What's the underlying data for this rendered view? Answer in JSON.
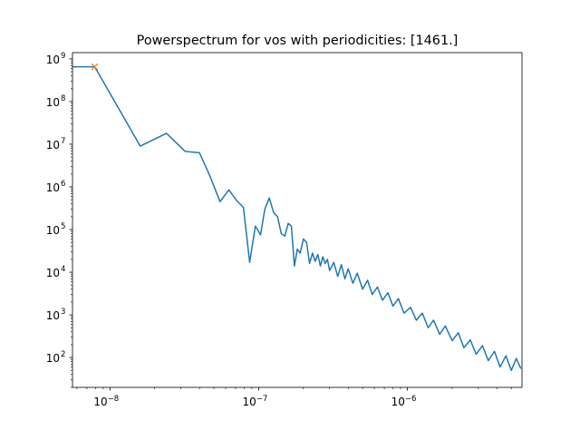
{
  "chart_data": {
    "type": "line",
    "title": "Powerspectrum for vos with periodicities: [1461.]",
    "xscale": "log",
    "yscale": "log",
    "xlim": [
      5.6e-09,
      5.9e-06
    ],
    "ylim": [
      20,
      1400000000.0
    ],
    "xticks": [
      {
        "value": 1e-08,
        "label": "10",
        "exp": "−8"
      },
      {
        "value": 1e-07,
        "label": "10",
        "exp": "−7"
      },
      {
        "value": 1e-06,
        "label": "10",
        "exp": "−6"
      }
    ],
    "yticks": [
      {
        "value": 100.0,
        "label": "10",
        "exp": "2"
      },
      {
        "value": 1000.0,
        "label": "10",
        "exp": "3"
      },
      {
        "value": 10000.0,
        "label": "10",
        "exp": "4"
      },
      {
        "value": 100000.0,
        "label": "10",
        "exp": "5"
      },
      {
        "value": 1000000.0,
        "label": "10",
        "exp": "6"
      },
      {
        "value": 10000000.0,
        "label": "10",
        "exp": "7"
      },
      {
        "value": 100000000.0,
        "label": "10",
        "exp": "8"
      },
      {
        "value": 1000000000.0,
        "label": "10",
        "exp": "9"
      }
    ],
    "grid": false,
    "series": [
      {
        "color": "#1f77b4",
        "points": [
          [
            5.6e-09,
            650000000.0
          ],
          [
            7.9e-09,
            650000000.0
          ],
          [
            1.6e-08,
            9000000.0
          ],
          [
            2.4e-08,
            18000000.0
          ],
          [
            3.2e-08,
            6800000.0
          ],
          [
            4e-08,
            6300000.0
          ],
          [
            4.7e-08,
            1800000.0
          ],
          [
            5.5e-08,
            450000.0
          ],
          [
            6.3e-08,
            850000.0
          ],
          [
            7.1e-08,
            480000.0
          ],
          [
            7.9e-08,
            330000.0
          ],
          [
            8.7e-08,
            17000.0
          ],
          [
            9.5e-08,
            120000.0
          ],
          [
            1.03e-07,
            75000.0
          ],
          [
            1.1e-07,
            300000.0
          ],
          [
            1.18e-07,
            550000.0
          ],
          [
            1.26e-07,
            250000.0
          ],
          [
            1.34e-07,
            200000.0
          ],
          [
            1.42e-07,
            80000.0
          ],
          [
            1.5e-07,
            70000.0
          ],
          [
            1.58e-07,
            140000.0
          ],
          [
            1.66e-07,
            120000.0
          ],
          [
            1.74e-07,
            14000.0
          ],
          [
            1.82e-07,
            35000.0
          ],
          [
            1.9e-07,
            28000.0
          ],
          [
            2e-07,
            60000.0
          ],
          [
            2.1e-07,
            50000.0
          ],
          [
            2.2e-07,
            16000.0
          ],
          [
            2.3e-07,
            28000.0
          ],
          [
            2.4e-07,
            18000.0
          ],
          [
            2.5e-07,
            26000.0
          ],
          [
            2.6e-07,
            14000.0
          ],
          [
            2.7e-07,
            23000.0
          ],
          [
            2.8e-07,
            16000.0
          ],
          [
            2.9e-07,
            20000.0
          ],
          [
            3e-07,
            11000.0
          ],
          [
            3.2e-07,
            17000.0
          ],
          [
            3.4e-07,
            8000.0
          ],
          [
            3.6e-07,
            15000.0
          ],
          [
            3.8e-07,
            7000.0
          ],
          [
            4e-07,
            12000.0
          ],
          [
            4.3e-07,
            5500.0
          ],
          [
            4.6e-07,
            9500.0
          ],
          [
            5e-07,
            4000.0
          ],
          [
            5.4e-07,
            6500.0
          ],
          [
            5.8e-07,
            3000.0
          ],
          [
            6.3e-07,
            4500.0
          ],
          [
            6.8e-07,
            2200.0
          ],
          [
            7.4e-07,
            3300.0
          ],
          [
            8e-07,
            1600.0
          ],
          [
            8.7e-07,
            2400.0
          ],
          [
            9.5e-07,
            1100.0
          ],
          [
            1.05e-06,
            1500.0
          ],
          [
            1.15e-06,
            750.0
          ],
          [
            1.26e-06,
            1100.0
          ],
          [
            1.38e-06,
            500.0
          ],
          [
            1.5e-06,
            750.0
          ],
          [
            1.65e-06,
            350.0
          ],
          [
            1.8e-06,
            550.0
          ],
          [
            2e-06,
            250.0
          ],
          [
            2.2e-06,
            380.0
          ],
          [
            2.4e-06,
            170.0
          ],
          [
            2.65e-06,
            260.0
          ],
          [
            2.9e-06,
            120.0
          ],
          [
            3.2e-06,
            190.0
          ],
          [
            3.5e-06,
            85.0
          ],
          [
            3.85e-06,
            140.0
          ],
          [
            4.2e-06,
            60.0
          ],
          [
            4.6e-06,
            110.0
          ],
          [
            5e-06,
            50.0
          ],
          [
            5.4e-06,
            95.0
          ],
          [
            5.8e-06,
            55.0
          ]
        ]
      }
    ],
    "marker": {
      "x": 7.9e-09,
      "y": 650000000.0,
      "symbol": "x",
      "color": "#ff7f0e"
    }
  }
}
